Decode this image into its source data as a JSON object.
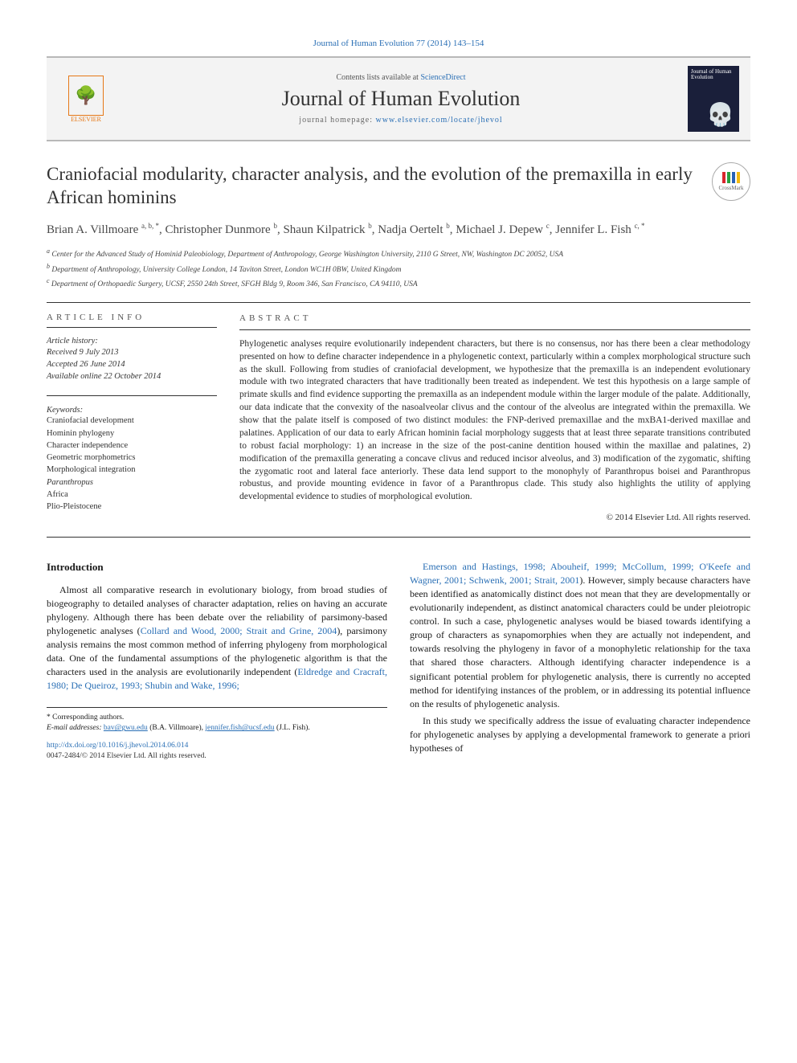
{
  "citation_top": "Journal of Human Evolution 77 (2014) 143–154",
  "header": {
    "contents_prefix": "Contents lists available at ",
    "contents_link": "ScienceDirect",
    "journal_name": "Journal of Human Evolution",
    "homepage_prefix": "journal homepage: ",
    "homepage_url": "www.elsevier.com/locate/jhevol",
    "publisher_label": "ELSEVIER",
    "thumb_title": "Journal of Human Evolution"
  },
  "crossmark_label": "CrossMark",
  "title": "Craniofacial modularity, character analysis, and the evolution of the premaxilla in early African hominins",
  "authors_html": "Brian A. Villmoare <sup>a, b, *</sup>, Christopher Dunmore <sup>b</sup>, Shaun Kilpatrick <sup>b</sup>, Nadja Oertelt <sup>b</sup>, Michael J. Depew <sup>c</sup>, Jennifer L. Fish <sup>c, *</sup>",
  "affiliations": [
    "a Center for the Advanced Study of Hominid Paleobiology, Department of Anthropology, George Washington University, 2110 G Street, NW, Washington DC 20052, USA",
    "b Department of Anthropology, University College London, 14 Taviton Street, London WC1H 0BW, United Kingdom",
    "c Department of Orthopaedic Surgery, UCSF, 2550 24th Street, SFGH Bldg 9, Room 346, San Francisco, CA 94110, USA"
  ],
  "article_info": {
    "heading": "ARTICLE INFO",
    "history_label": "Article history:",
    "received": "Received 9 July 2013",
    "accepted": "Accepted 26 June 2014",
    "online": "Available online 22 October 2014",
    "keywords_label": "Keywords:",
    "keywords": [
      "Craniofacial development",
      "Hominin phylogeny",
      "Character independence",
      "Geometric morphometrics",
      "Morphological integration",
      "Paranthropus",
      "Africa",
      "Plio-Pleistocene"
    ]
  },
  "abstract": {
    "heading": "ABSTRACT",
    "text": "Phylogenetic analyses require evolutionarily independent characters, but there is no consensus, nor has there been a clear methodology presented on how to define character independence in a phylogenetic context, particularly within a complex morphological structure such as the skull. Following from studies of craniofacial development, we hypothesize that the premaxilla is an independent evolutionary module with two integrated characters that have traditionally been treated as independent. We test this hypothesis on a large sample of primate skulls and find evidence supporting the premaxilla as an independent module within the larger module of the palate. Additionally, our data indicate that the convexity of the nasoalveolar clivus and the contour of the alveolus are integrated within the premaxilla. We show that the palate itself is composed of two distinct modules: the FNP-derived premaxillae and the mxBA1-derived maxillae and palatines. Application of our data to early African hominin facial morphology suggests that at least three separate transitions contributed to robust facial morphology: 1) an increase in the size of the post-canine dentition housed within the maxillae and palatines, 2) modification of the premaxilla generating a concave clivus and reduced incisor alveolus, and 3) modification of the zygomatic, shifting the zygomatic root and lateral face anteriorly. These data lend support to the monophyly of Paranthropus boisei and Paranthropus robustus, and provide mounting evidence in favor of a Paranthropus clade. This study also highlights the utility of applying developmental evidence to studies of morphological evolution.",
    "copyright": "© 2014 Elsevier Ltd. All rights reserved."
  },
  "body": {
    "intro_heading": "Introduction",
    "para1_a": "Almost all comparative research in evolutionary biology, from broad studies of biogeography to detailed analyses of character adaptation, relies on having an accurate phylogeny. Although there has been debate over the reliability of parsimony-based phylogenetic analyses (",
    "cite1": "Collard and Wood, 2000; Strait and Grine, 2004",
    "para1_b": "), parsimony analysis remains the most common method of inferring phylogeny from morphological data. One of the fundamental assumptions of the phylogenetic algorithm is that the characters used in the analysis are evolutionarily independent (",
    "cite2": "Eldredge and Cracraft, 1980; De Queiroz, 1993; Shubin and Wake, 1996;",
    "cite3": "Emerson and Hastings, 1998; Abouheif, 1999; McCollum, 1999; O'Keefe and Wagner, 2001; Schwenk, 2001; Strait, 2001",
    "para2": "). However, simply because characters have been identified as anatomically distinct does not mean that they are developmentally or evolutionarily independent, as distinct anatomical characters could be under pleiotropic control. In such a case, phylogenetic analyses would be biased towards identifying a group of characters as synapomorphies when they are actually not independent, and towards resolving the phylogeny in favor of a monophyletic relationship for the taxa that shared those characters. Although identifying character independence is a significant potential problem for phylogenetic analysis, there is currently no accepted method for identifying instances of the problem, or in addressing its potential influence on the results of phylogenetic analysis.",
    "para3": "In this study we specifically address the issue of evaluating character independence for phylogenetic analyses by applying a developmental framework to generate a priori hypotheses of"
  },
  "footnote": {
    "corr": "* Corresponding authors.",
    "email_label": "E-mail addresses:",
    "email1": "bav@gwu.edu",
    "name1": "(B.A. Villmoare),",
    "email2": "jennifer.fish@ucsf.edu",
    "name2": "(J.L. Fish)."
  },
  "doi": {
    "url": "http://dx.doi.org/10.1016/j.jhevol.2014.06.014",
    "line2": "0047-2484/© 2014 Elsevier Ltd. All rights reserved."
  },
  "colors": {
    "link": "#2a6fb5",
    "elsevier": "#e67817",
    "rule": "#333333"
  }
}
